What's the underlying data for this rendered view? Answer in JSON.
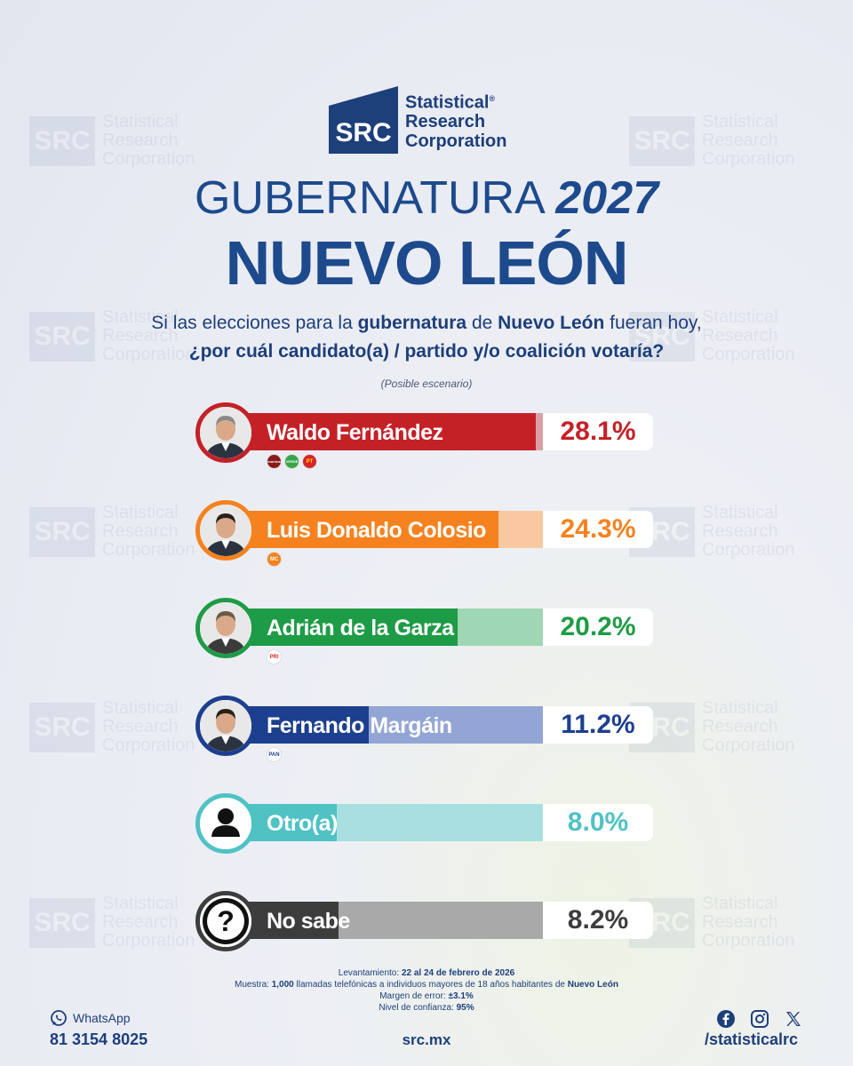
{
  "brand": {
    "logo_letters": "SRC",
    "line1": "Statistical",
    "line2": "Research",
    "line3": "Corporation",
    "registered": "®"
  },
  "title": {
    "line1_a": "GUBERNATURA",
    "line1_b": "2027",
    "line2": "NUEVO LEÓN"
  },
  "question": {
    "part1": "Si las elecciones para la ",
    "bold1": "gubernatura",
    "part2": " de ",
    "bold2": "Nuevo León",
    "part3": " fueran hoy,",
    "line2": "¿por cuál candidato(a) / partido y/o coalición votaría?",
    "note": "(Posible escenario)"
  },
  "chart_data": {
    "type": "bar",
    "categories": [
      "Waldo Fernández",
      "Luis Donaldo Colosio",
      "Adrián de la Garza",
      "Fernando Margáin",
      "Otro(a)",
      "No sabe"
    ],
    "values": [
      28.1,
      24.3,
      20.2,
      11.2,
      8.0,
      8.2
    ],
    "labels": [
      "28.1%",
      "24.3%",
      "20.2%",
      "11.2%",
      "8.0%",
      "8.2%"
    ],
    "colors": [
      "#c42127",
      "#f5821f",
      "#1e9b46",
      "#1d3f8f",
      "#4fc2c4",
      "#3d3d3d"
    ],
    "light_colors": [
      "#dba0a6",
      "#f8c9a0",
      "#9fd6b4",
      "#93a5d4",
      "#a8dfe0",
      "#a9a9a9"
    ],
    "pct_colors": [
      "#c42127",
      "#f5821f",
      "#1e9b46",
      "#1d3f8f",
      "#4fc2c4",
      "#3d3d3d"
    ],
    "xlim": [
      0,
      30
    ],
    "parties": [
      [
        "morena",
        "VERDE",
        "PT"
      ],
      [
        "MC"
      ],
      [
        "PRI"
      ],
      [
        "PAN"
      ],
      [],
      []
    ]
  },
  "footer": {
    "levantamiento_label": "Levantamiento: ",
    "levantamiento_value": "22 al 24 de febrero de 2026",
    "muestra_label": "Muestra: ",
    "muestra_bold1": "1,000",
    "muestra_text": " llamadas telefónicas a individuos mayores de 18 años habitantes de ",
    "muestra_bold2": "Nuevo León",
    "margen_label": "Margen de error: ",
    "margen_value": "±3.1%",
    "nivel_label": "Nivel de confianza: ",
    "nivel_value": "95%",
    "whatsapp_label": "WhatsApp",
    "whatsapp_number": "81 3154 8025",
    "site": "src.mx",
    "handle": "/statisticalrc"
  },
  "icons": [
    "whatsapp-icon",
    "facebook-icon",
    "instagram-icon",
    "x-icon"
  ]
}
